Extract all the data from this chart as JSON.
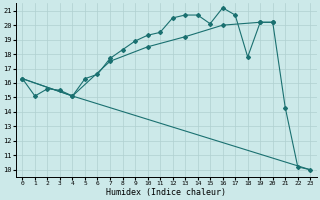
{
  "xlabel": "Humidex (Indice chaleur)",
  "background_color": "#cce9e9",
  "grid_color": "#b0d0d0",
  "line_color": "#1a7070",
  "xlim": [
    -0.5,
    23.5
  ],
  "ylim": [
    9.5,
    21.5
  ],
  "xticks": [
    0,
    1,
    2,
    3,
    4,
    5,
    6,
    7,
    8,
    9,
    10,
    11,
    12,
    13,
    14,
    15,
    16,
    17,
    18,
    19,
    20,
    21,
    22,
    23
  ],
  "yticks": [
    10,
    11,
    12,
    13,
    14,
    15,
    16,
    17,
    18,
    19,
    20,
    21
  ],
  "series1": [
    [
      0,
      16.3
    ],
    [
      1,
      15.1
    ],
    [
      2,
      15.6
    ],
    [
      3,
      15.5
    ],
    [
      4,
      15.1
    ],
    [
      5,
      16.3
    ],
    [
      6,
      16.6
    ],
    [
      7,
      17.7
    ],
    [
      8,
      18.3
    ],
    [
      9,
      18.9
    ],
    [
      10,
      19.3
    ],
    [
      11,
      19.5
    ],
    [
      12,
      20.5
    ],
    [
      13,
      20.7
    ],
    [
      14,
      20.7
    ],
    [
      15,
      20.1
    ],
    [
      16,
      21.2
    ],
    [
      17,
      20.7
    ],
    [
      18,
      17.8
    ],
    [
      19,
      20.2
    ],
    [
      20,
      20.2
    ],
    [
      21,
      14.3
    ],
    [
      22,
      10.2
    ],
    [
      23,
      10.0
    ]
  ],
  "series2": [
    [
      0,
      16.3
    ],
    [
      4,
      15.1
    ],
    [
      7,
      17.5
    ],
    [
      10,
      18.5
    ],
    [
      13,
      19.2
    ],
    [
      16,
      20.0
    ],
    [
      19,
      20.2
    ],
    [
      20,
      20.2
    ]
  ],
  "series3": [
    [
      0,
      16.3
    ],
    [
      4,
      15.1
    ],
    [
      23,
      10.0
    ]
  ]
}
